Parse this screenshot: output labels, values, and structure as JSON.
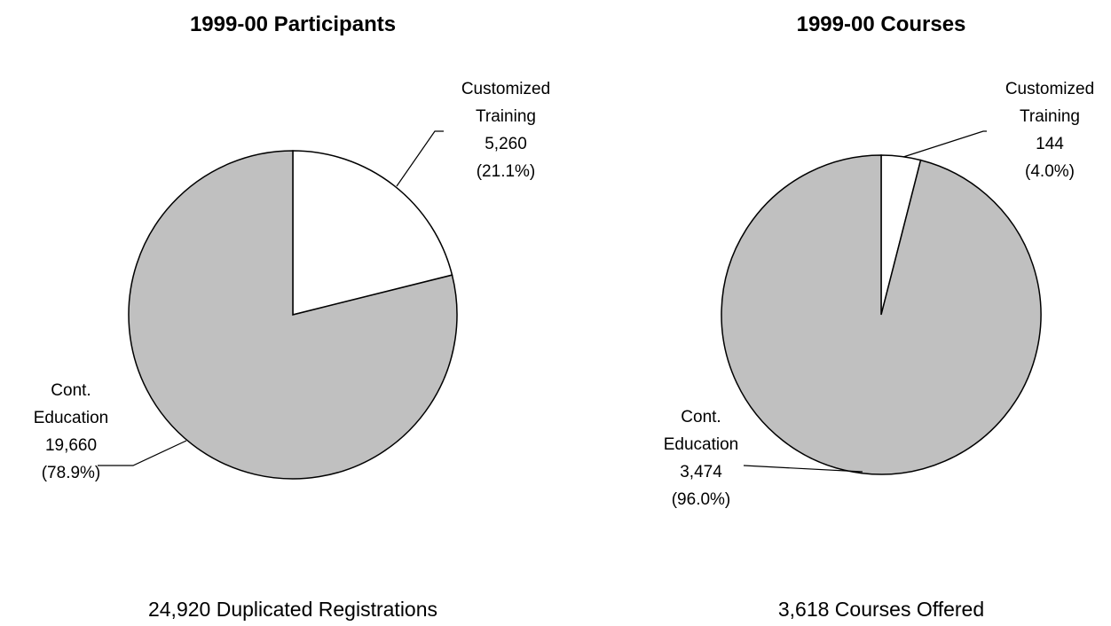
{
  "chart_data": [
    {
      "type": "pie",
      "title": "1999-00  Participants",
      "categories": [
        "Customized Training",
        "Cont. Education"
      ],
      "values": [
        5260,
        19660
      ],
      "value_labels": [
        "5,260",
        "19,660"
      ],
      "percents": [
        21.1,
        78.9
      ],
      "percent_labels": [
        "(21.1%)",
        "(78.9%)"
      ],
      "colors": [
        "#ffffff",
        "#c0c0c0"
      ],
      "caption": "24,920 Duplicated Registrations"
    },
    {
      "type": "pie",
      "title": "1999-00  Courses",
      "categories": [
        "Customized Training",
        "Cont. Education"
      ],
      "values": [
        144,
        3474
      ],
      "value_labels": [
        "144",
        "3,474"
      ],
      "percents": [
        4.0,
        96.0
      ],
      "percent_labels": [
        "(4.0%)",
        "(96.0%)"
      ],
      "colors": [
        "#ffffff",
        "#c0c0c0"
      ],
      "caption": "3,618 Courses Offered"
    }
  ]
}
